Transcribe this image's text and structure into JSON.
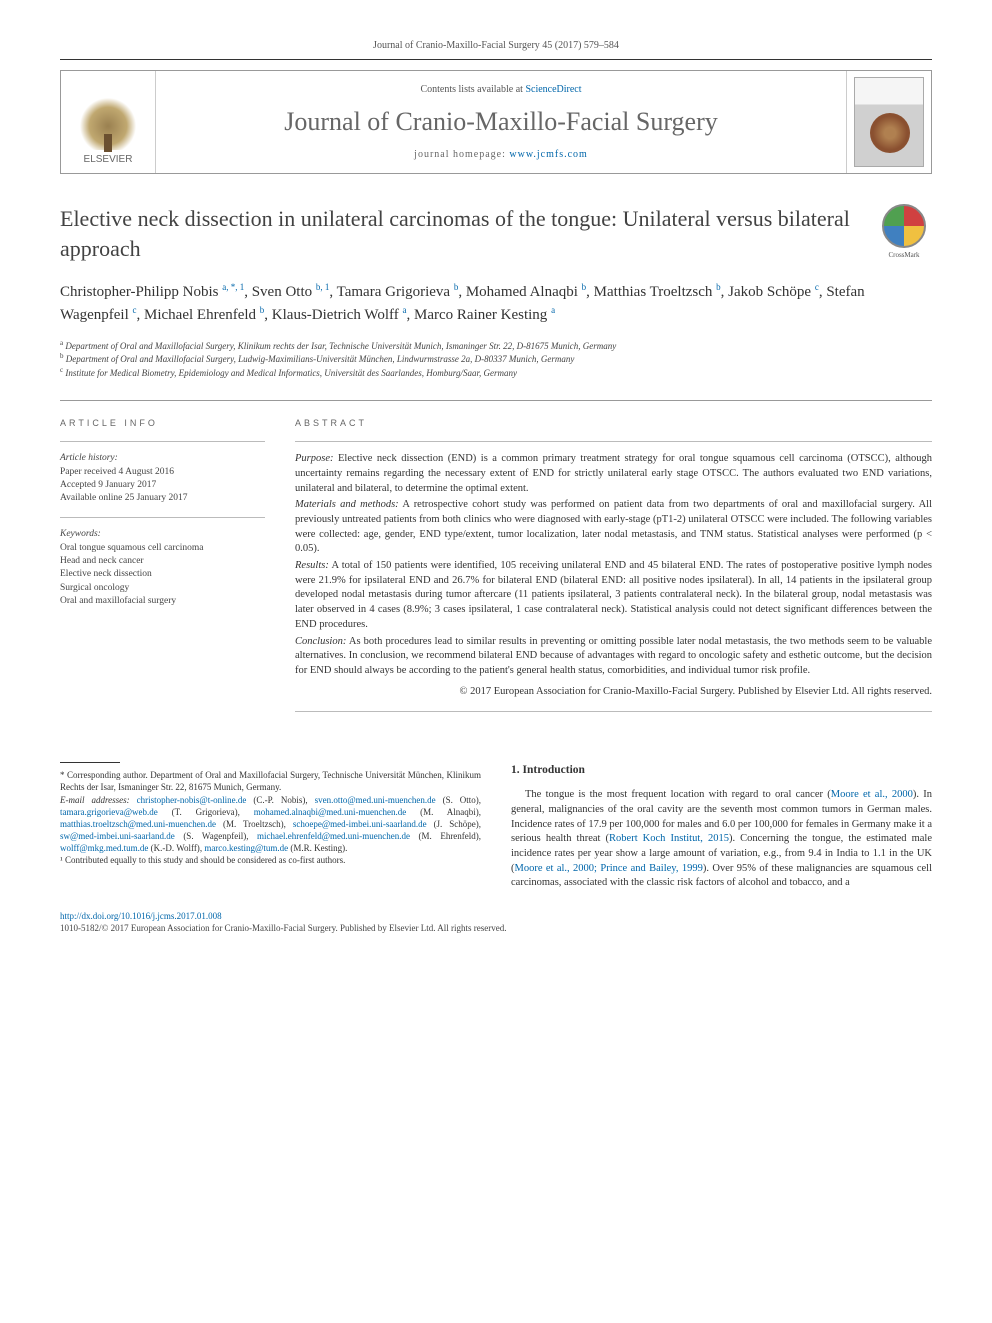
{
  "running_header": "Journal of Cranio-Maxillo-Facial Surgery 45 (2017) 579–584",
  "masthead": {
    "contents_prefix": "Contents lists available at ",
    "contents_link": "ScienceDirect",
    "journal_name": "Journal of Cranio-Maxillo-Facial Surgery",
    "homepage_prefix": "journal homepage: ",
    "homepage_link": "www.jcmfs.com",
    "elsevier_label": "ELSEVIER"
  },
  "crossmark_label": "CrossMark",
  "title": "Elective neck dissection in unilateral carcinomas of the tongue: Unilateral versus bilateral approach",
  "authors": [
    {
      "name": "Christopher-Philipp Nobis",
      "sup": "a, *, 1"
    },
    {
      "name": "Sven Otto",
      "sup": "b, 1"
    },
    {
      "name": "Tamara Grigorieva",
      "sup": "b"
    },
    {
      "name": "Mohamed Alnaqbi",
      "sup": "b"
    },
    {
      "name": "Matthias Troeltzsch",
      "sup": "b"
    },
    {
      "name": "Jakob Schöpe",
      "sup": "c"
    },
    {
      "name": "Stefan Wagenpfeil",
      "sup": "c"
    },
    {
      "name": "Michael Ehrenfeld",
      "sup": "b"
    },
    {
      "name": "Klaus-Dietrich Wolff",
      "sup": "a"
    },
    {
      "name": "Marco Rainer Kesting",
      "sup": "a"
    }
  ],
  "affiliations": [
    {
      "sup": "a",
      "text": "Department of Oral and Maxillofacial Surgery, Klinikum rechts der Isar, Technische Universität Munich, Ismaninger Str. 22, D-81675 Munich, Germany"
    },
    {
      "sup": "b",
      "text": "Department of Oral and Maxillofacial Surgery, Ludwig-Maximilians-Universität München, Lindwurmstrasse 2a, D-80337 Munich, Germany"
    },
    {
      "sup": "c",
      "text": "Institute for Medical Biometry, Epidemiology and Medical Informatics, Universität des Saarlandes, Homburg/Saar, Germany"
    }
  ],
  "info": {
    "heading": "ARTICLE INFO",
    "history_label": "Article history:",
    "history": [
      "Paper received 4 August 2016",
      "Accepted 9 January 2017",
      "Available online 25 January 2017"
    ],
    "keywords_label": "Keywords:",
    "keywords": [
      "Oral tongue squamous cell carcinoma",
      "Head and neck cancer",
      "Elective neck dissection",
      "Surgical oncology",
      "Oral and maxillofacial surgery"
    ]
  },
  "abstract": {
    "heading": "ABSTRACT",
    "purpose_label": "Purpose:",
    "purpose": "Elective neck dissection (END) is a common primary treatment strategy for oral tongue squamous cell carcinoma (OTSCC), although uncertainty remains regarding the necessary extent of END for strictly unilateral early stage OTSCC. The authors evaluated two END variations, unilateral and bilateral, to determine the optimal extent.",
    "methods_label": "Materials and methods:",
    "methods": "A retrospective cohort study was performed on patient data from two departments of oral and maxillofacial surgery. All previously untreated patients from both clinics who were diagnosed with early-stage (pT1-2) unilateral OTSCC were included. The following variables were collected: age, gender, END type/extent, tumor localization, later nodal metastasis, and TNM status. Statistical analyses were performed (p < 0.05).",
    "results_label": "Results:",
    "results": "A total of 150 patients were identified, 105 receiving unilateral END and 45 bilateral END. The rates of postoperative positive lymph nodes were 21.9% for ipsilateral END and 26.7% for bilateral END (bilateral END: all positive nodes ipsilateral). In all, 14 patients in the ipsilateral group developed nodal metastasis during tumor aftercare (11 patients ipsilateral, 3 patients contralateral neck). In the bilateral group, nodal metastasis was later observed in 4 cases (8.9%; 3 cases ipsilateral, 1 case contralateral neck). Statistical analysis could not detect significant differences between the END procedures.",
    "conclusion_label": "Conclusion:",
    "conclusion": "As both procedures lead to similar results in preventing or omitting possible later nodal metastasis, the two methods seem to be valuable alternatives. In conclusion, we recommend bilateral END because of advantages with regard to oncologic safety and esthetic outcome, but the decision for END should always be according to the patient's general health status, comorbidities, and individual tumor risk profile.",
    "copyright": "© 2017 European Association for Cranio-Maxillo-Facial Surgery. Published by Elsevier Ltd. All rights reserved."
  },
  "footnotes": {
    "corr_label": "* Corresponding author.",
    "corr_text": "Department of Oral and Maxillofacial Surgery, Technische Universität München, Klinikum Rechts der Isar, Ismaninger Str. 22, 81675 Munich, Germany.",
    "email_label": "E-mail addresses:",
    "emails": [
      {
        "addr": "christopher-nobis@t-online.de",
        "who": "(C.-P. Nobis)"
      },
      {
        "addr": "sven.otto@med.uni-muenchen.de",
        "who": "(S. Otto)"
      },
      {
        "addr": "tamara.grigorieva@web.de",
        "who": "(T. Grigorieva)"
      },
      {
        "addr": "mohamed.alnaqbi@med.uni-muenchen.de",
        "who": "(M. Alnaqbi)"
      },
      {
        "addr": "matthias.troeltzsch@med.uni-muenchen.de",
        "who": "(M. Troeltzsch)"
      },
      {
        "addr": "schoepe@med-imbei.uni-saarland.de",
        "who": "(J. Schöpe)"
      },
      {
        "addr": "sw@med-imbei.uni-saarland.de",
        "who": "(S. Wagenpfeil)"
      },
      {
        "addr": "michael.ehrenfeld@med.uni-muenchen.de",
        "who": "(M. Ehrenfeld)"
      },
      {
        "addr": "wolff@mkg.med.tum.de",
        "who": "(K.-D. Wolff)"
      },
      {
        "addr": "marco.kesting@tum.de",
        "who": "(M.R. Kesting)"
      }
    ],
    "note1": "¹ Contributed equally to this study and should be considered as co-first authors."
  },
  "intro": {
    "heading": "1. Introduction",
    "para1_pre": "The tongue is the most frequent location with regard to oral cancer (",
    "ref1": "Moore et al., 2000",
    "para1_mid": "). In general, malignancies of the oral cavity are the seventh most common tumors in German males. Incidence rates of 17.9 per 100,000 for males and 6.0 per 100,000 for females in Germany make it a serious health threat (",
    "ref2": "Robert Koch Institut, 2015",
    "para1_mid2": "). Concerning the tongue, the estimated male incidence rates per year show a large amount of variation, e.g., from 9.4 in India to 1.1 in the UK (",
    "ref3": "Moore et al., 2000; Prince and Bailey, 1999",
    "para1_end": "). Over 95% of these malignancies are squamous cell carcinomas, associated with the classic risk factors of alcohol and tobacco, and a"
  },
  "doi": {
    "url": "http://dx.doi.org/10.1016/j.jcms.2017.01.008",
    "issn_line": "1010-5182/© 2017 European Association for Cranio-Maxillo-Facial Surgery. Published by Elsevier Ltd. All rights reserved."
  },
  "colors": {
    "link": "#0066aa",
    "heading_gray": "#666666",
    "text": "#333333",
    "rule": "#999999"
  }
}
